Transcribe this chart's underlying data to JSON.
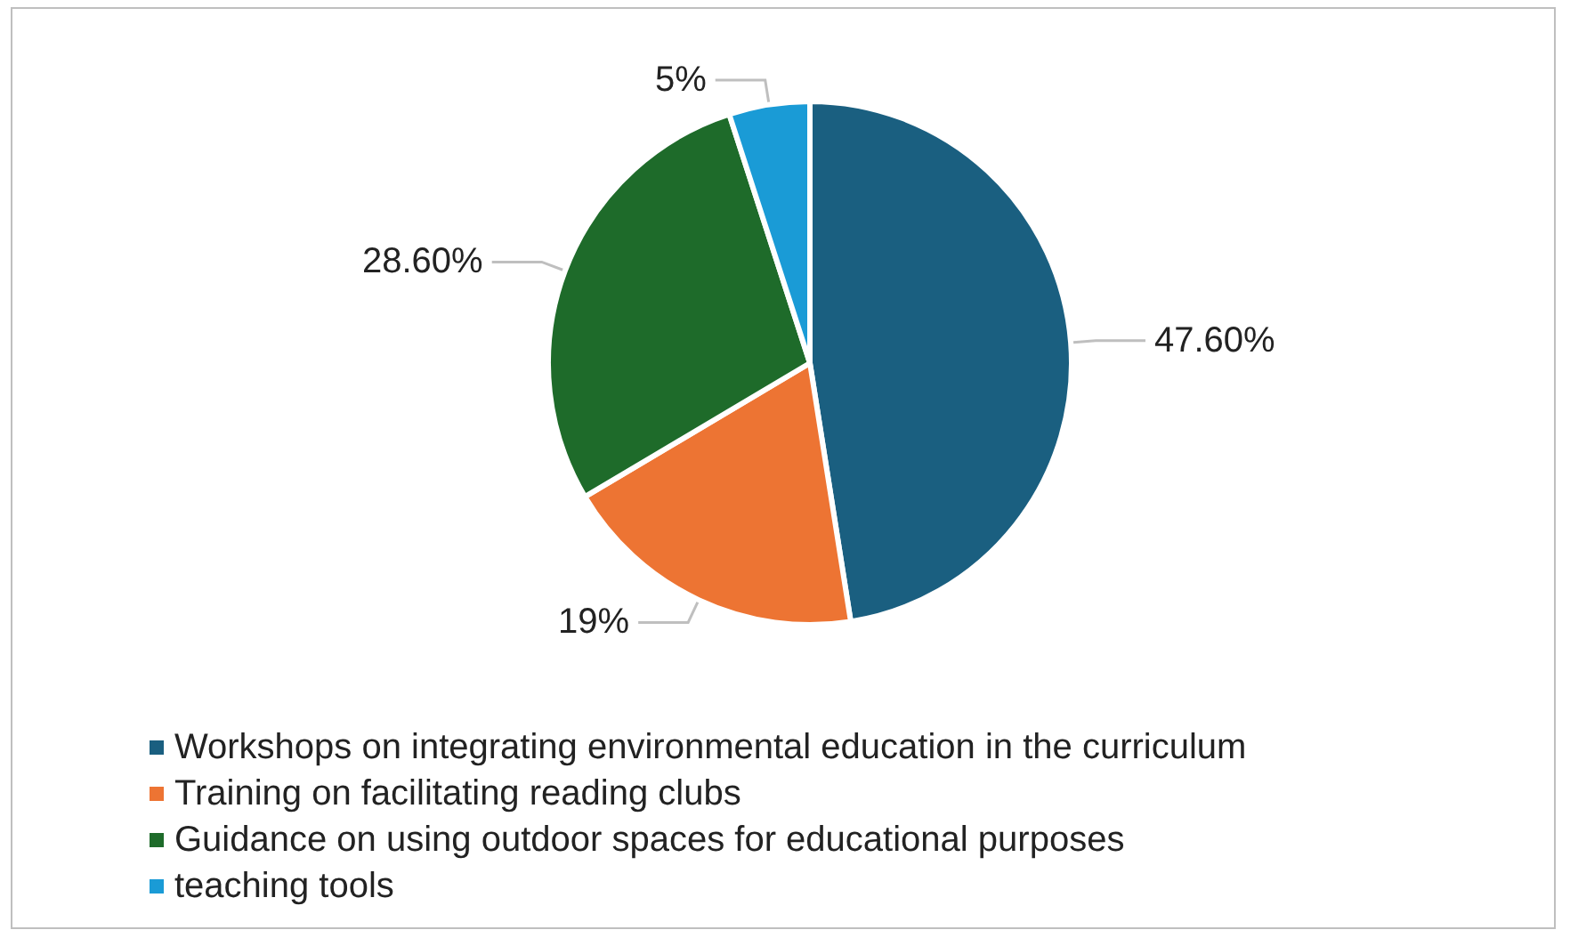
{
  "chart_data": {
    "type": "pie",
    "categories": [
      "Workshops on integrating environmental education in the curriculum",
      "Training on facilitating reading clubs",
      "Guidance on using outdoor spaces for educational purposes",
      "teaching tools"
    ],
    "values": [
      47.6,
      19,
      28.6,
      5
    ],
    "colors": [
      "#1a5f80",
      "#ed7433",
      "#1e6b2a",
      "#1a9bd6"
    ],
    "value_labels": [
      "47.60%",
      "19%",
      "28.60%",
      "5%"
    ],
    "legend": "bottom"
  }
}
